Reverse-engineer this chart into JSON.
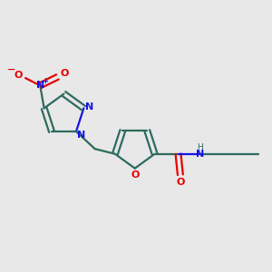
{
  "background_color": "#e8e8e8",
  "bond_color": "#2d6b5e",
  "nitrogen_color": "#1414e6",
  "oxygen_color": "#e60000",
  "figsize": [
    3.0,
    3.0
  ],
  "dpi": 100,
  "xlim": [
    0,
    10
  ],
  "ylim": [
    0,
    10
  ]
}
